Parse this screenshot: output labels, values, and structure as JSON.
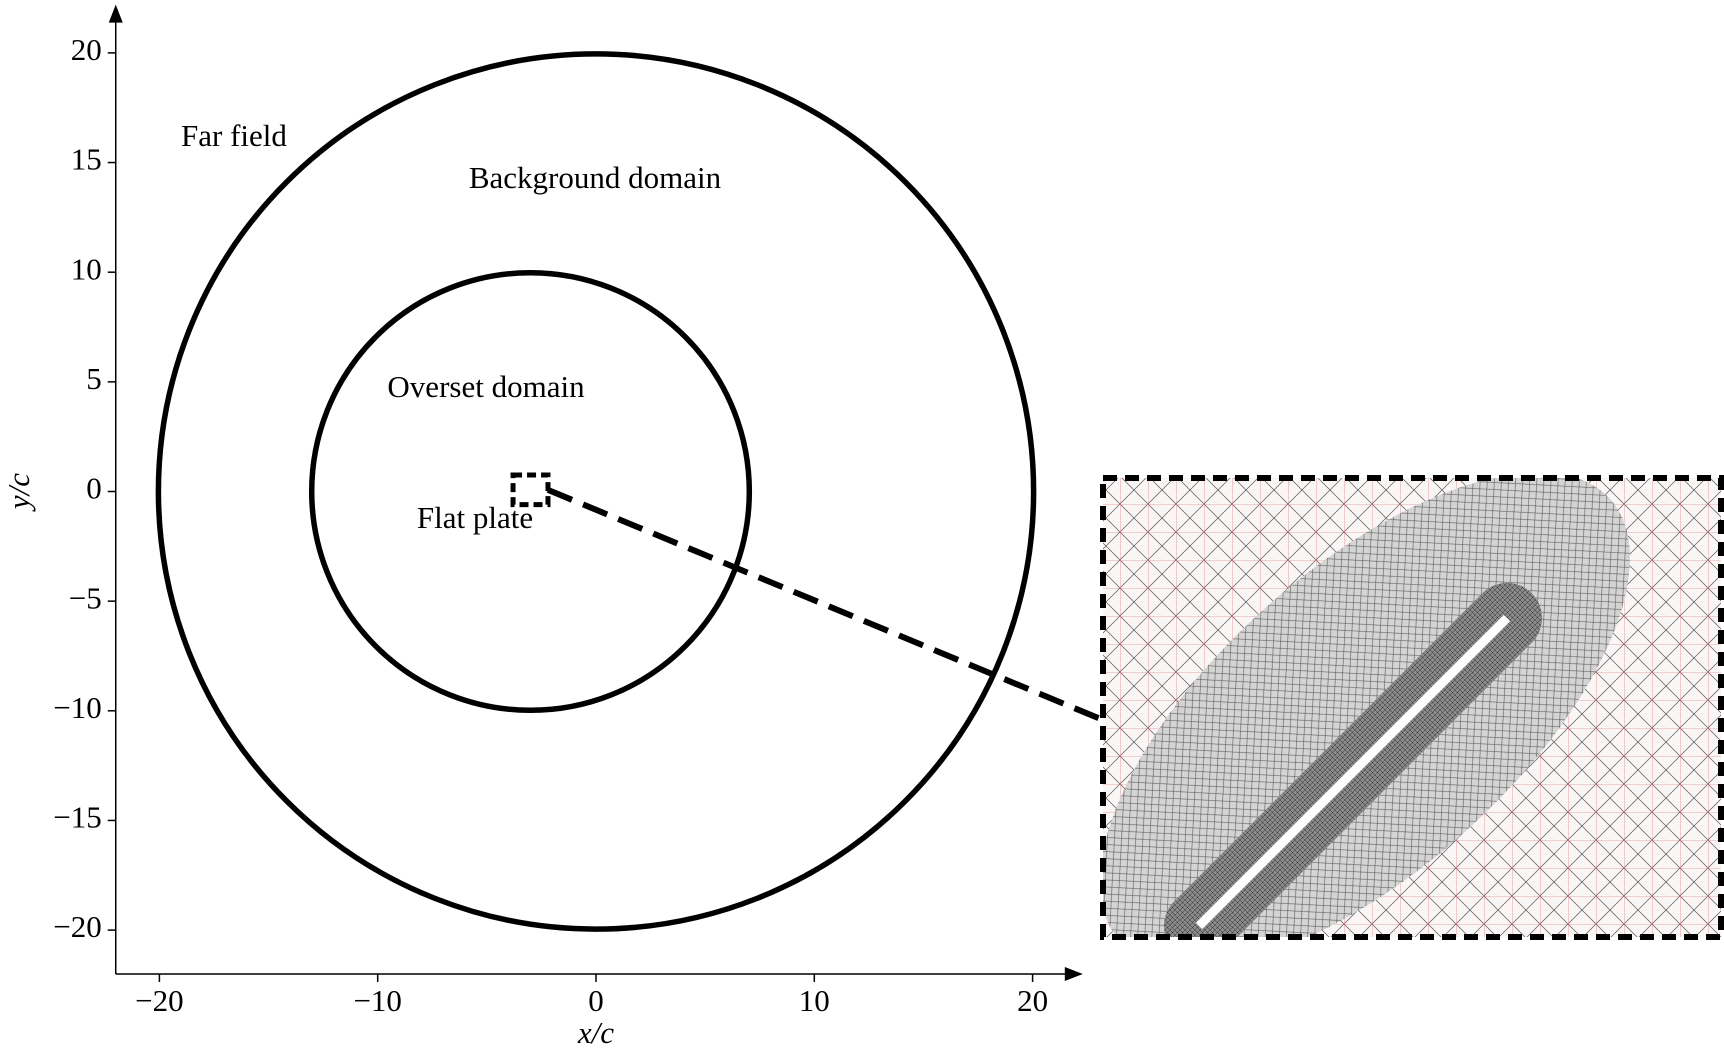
{
  "chart_data": {
    "type": "shapes",
    "xlabel": "x/c",
    "ylabel": "y/c",
    "xlim": [
      -22,
      22.3
    ],
    "ylim": [
      -22,
      22.2
    ],
    "xticks": [
      {
        "value": -20,
        "label": "−20"
      },
      {
        "value": -10,
        "label": "−10"
      },
      0,
      10,
      20
    ],
    "yticks": [
      {
        "value": -20,
        "label": "−20"
      },
      {
        "value": -15,
        "label": "−15"
      },
      {
        "value": -10,
        "label": "−10"
      },
      {
        "value": -5,
        "label": "−5"
      },
      0,
      5,
      10,
      15,
      20
    ],
    "shapes": [
      {
        "cx": 0,
        "cy": 0,
        "r": 20
      },
      {
        "cx": -3,
        "cy": 0,
        "r": 10
      }
    ],
    "zoom_box": {
      "xlim": [
        -3.8,
        -2.2
      ],
      "ylim": [
        -0.6,
        0.75
      ]
    },
    "annotations": [
      "Far field",
      "Background domain",
      "Overset domain",
      "Flat plate"
    ],
    "color": "#000000"
  }
}
